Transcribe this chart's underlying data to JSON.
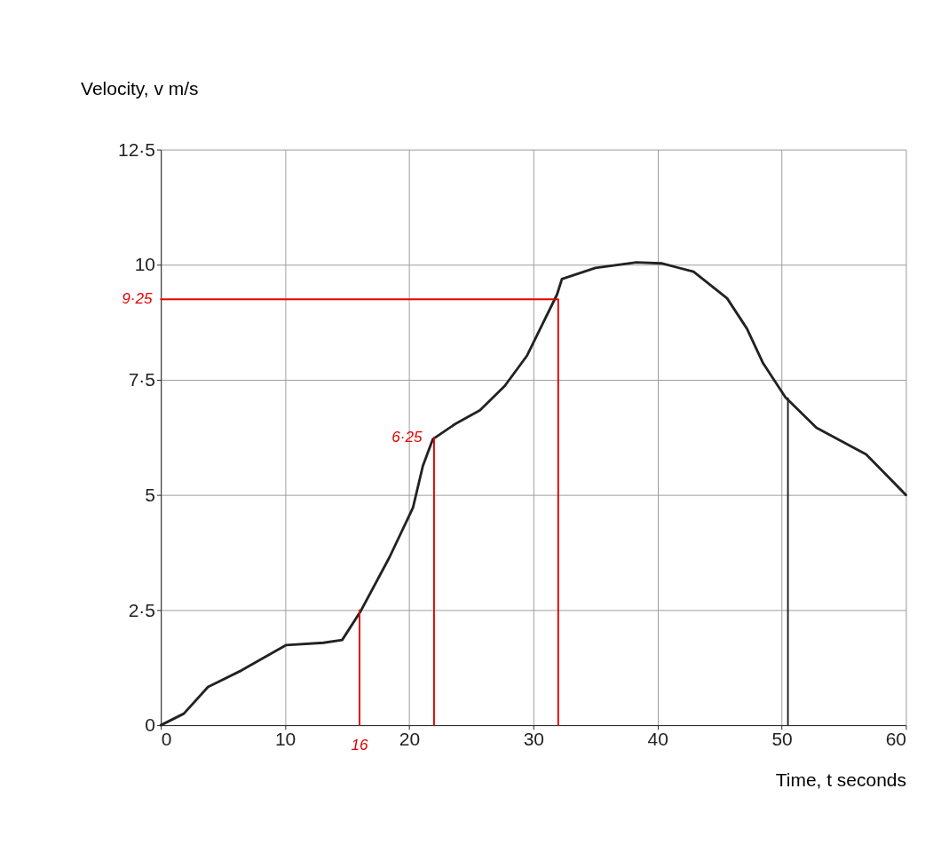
{
  "chart_data": {
    "type": "line",
    "xlabel": "Time, t seconds",
    "ylabel": "Velocity, v m/s",
    "xlim": [
      0,
      60
    ],
    "xticks": [
      0,
      10,
      20,
      30,
      40,
      50,
      60
    ],
    "ylim": [
      0,
      12.5
    ],
    "yticks": [
      0,
      {
        "value": 2.5,
        "label": "2·5"
      },
      5,
      {
        "value": 7.5,
        "label": "7·5"
      },
      10,
      {
        "value": 12.5,
        "label": "12·5"
      }
    ],
    "grid": true,
    "marker": "none",
    "line_style": "solid",
    "series": [
      {
        "color": "#222222",
        "x": [
          0,
          1.85,
          3.8,
          6.5,
          10.1,
          13.1,
          14.6,
          16.1,
          18.4,
          20.3,
          21.1,
          21.9,
          23.7,
          25.7,
          27.7,
          29.5,
          30.7,
          31.9,
          32.3,
          35,
          38.3,
          40.3,
          42.9,
          45.6,
          47.2,
          48.5,
          50.3,
          52.8,
          56.8,
          60
        ],
        "values": [
          0,
          0.25,
          0.83,
          1.19,
          1.74,
          1.79,
          1.85,
          2.48,
          3.64,
          4.72,
          5.63,
          6.21,
          6.54,
          6.84,
          7.37,
          8.03,
          8.69,
          9.35,
          9.69,
          9.93,
          10.05,
          10.03,
          9.85,
          9.27,
          8.61,
          7.86,
          7.12,
          6.46,
          5.88,
          5
        ]
      },
      {
        "color": "#e00000",
        "x": [
          0,
          32,
          32
        ],
        "values": [
          9.25,
          9.25,
          0
        ]
      },
      {
        "color": "#e00000",
        "x": [
          22,
          22
        ],
        "values": [
          0,
          6.25
        ]
      },
      {
        "color": "#e00000",
        "x": [
          16,
          16
        ],
        "values": [
          0,
          2.5
        ]
      },
      {
        "color": "#222222",
        "x": [
          50.5,
          50.5
        ],
        "values": [
          0,
          7.1
        ]
      }
    ],
    "annotations": [
      {
        "text": "9·25",
        "x": 0,
        "y": 9.25
      },
      {
        "text": "6·25",
        "x": 22,
        "y": 6.25
      },
      {
        "text": "16",
        "x": 16,
        "y": 0
      }
    ]
  }
}
